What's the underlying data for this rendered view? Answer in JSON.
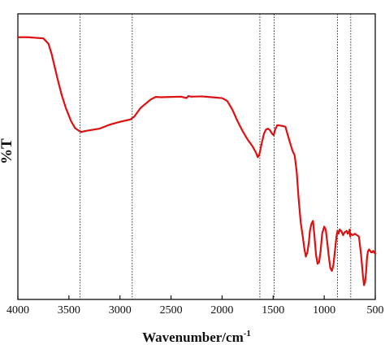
{
  "chart_data": {
    "type": "line",
    "xlabel": "Wavenumber/cm",
    "xlabel_superscript": "-1",
    "ylabel": "%T",
    "xlim": [
      4000,
      500
    ],
    "x_reversed": true,
    "ylim": [
      0,
      100
    ],
    "y_ticks_shown": false,
    "x_ticks": [
      4000,
      3500,
      3000,
      2500,
      2000,
      1500,
      1000,
      500
    ],
    "x_tick_labels": [
      "4000",
      "3500",
      "3000",
      "2500",
      "2000",
      "1500",
      "1000",
      "500"
    ],
    "line_color": "#dd1111",
    "reference_lines": [
      3390,
      2880,
      1630,
      1490,
      870,
      740
    ],
    "series": [
      {
        "x": [
          4000,
          3900,
          3750,
          3700,
          3670,
          3640,
          3610,
          3570,
          3530,
          3480,
          3440,
          3400,
          3380,
          3350,
          3300,
          3200,
          3100,
          3000,
          2900,
          2860,
          2800,
          2700,
          2650,
          2600,
          2500,
          2400,
          2350,
          2330,
          2300,
          2200,
          2100,
          2000,
          1950,
          1900,
          1850,
          1800,
          1750,
          1700,
          1670,
          1650,
          1635,
          1625,
          1610,
          1590,
          1570,
          1550,
          1530,
          1510,
          1495,
          1480,
          1460,
          1420,
          1380,
          1340,
          1310,
          1290,
          1270,
          1250,
          1230,
          1210,
          1195,
          1180,
          1165,
          1150,
          1140,
          1125,
          1110,
          1095,
          1080,
          1065,
          1050,
          1035,
          1020,
          1000,
          985,
          970,
          955,
          940,
          925,
          910,
          895,
          880,
          870,
          860,
          848,
          830,
          815,
          800,
          780,
          770,
          760,
          750,
          745,
          740,
          720,
          700,
          680,
          660,
          640,
          620,
          610,
          600,
          590,
          580,
          570,
          560,
          550,
          540,
          530,
          520,
          510,
          500
        ],
        "y": [
          91.8,
          91.8,
          91.4,
          89.5,
          86.0,
          81.5,
          77.0,
          71.5,
          67.0,
          62.5,
          60.0,
          59.0,
          58.6,
          58.9,
          59.2,
          59.8,
          61.2,
          62.2,
          63.0,
          64.0,
          67.0,
          70.0,
          70.9,
          70.8,
          70.9,
          71.0,
          70.5,
          71.2,
          71.0,
          71.1,
          70.8,
          70.5,
          69.5,
          66.5,
          62.5,
          59.0,
          56.0,
          53.5,
          51.5,
          49.8,
          50.8,
          52.5,
          55.0,
          58.0,
          59.5,
          59.8,
          59.2,
          58.0,
          57.5,
          59.5,
          61.0,
          60.8,
          60.5,
          55.5,
          52.0,
          50.5,
          45.0,
          35.0,
          27.0,
          22.0,
          18.0,
          15.0,
          16.5,
          20.0,
          24.0,
          26.5,
          27.5,
          22.0,
          15.5,
          12.5,
          13.0,
          17.0,
          23.0,
          25.5,
          24.5,
          20.0,
          15.0,
          11.0,
          10.0,
          12.0,
          17.0,
          22.0,
          24.0,
          23.0,
          24.5,
          23.8,
          22.5,
          23.5,
          24.0,
          23.0,
          23.5,
          24.5,
          22.0,
          23.0,
          22.5,
          23.0,
          22.5,
          22.0,
          16.0,
          8.0,
          5.0,
          6.0,
          9.5,
          15.0,
          17.0,
          17.5,
          17.0,
          16.5,
          16.5,
          17.0,
          16.5,
          16.0
        ]
      }
    ]
  }
}
